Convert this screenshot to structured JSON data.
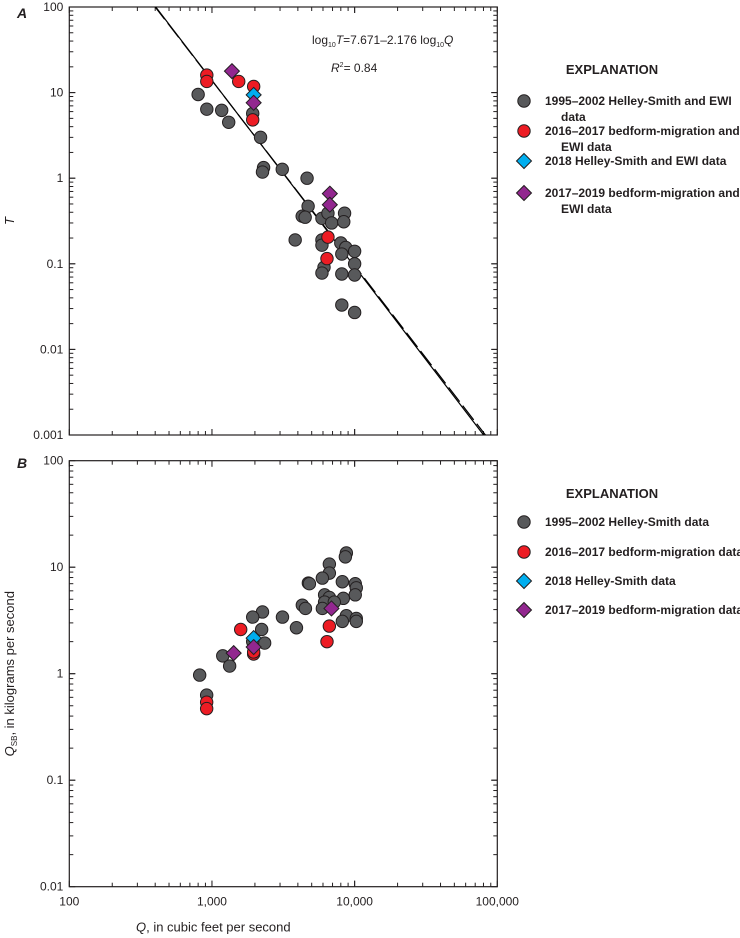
{
  "colors": {
    "gray": "#58595b",
    "red": "#ed1c24",
    "blue": "#00aeef",
    "purple": "#92278f",
    "axis": "#231f20"
  },
  "chart_data": [
    {
      "panel": "A",
      "type": "scatter",
      "x_scale": "log",
      "y_scale": "log",
      "xlim": [
        100,
        100000
      ],
      "ylim": [
        0.001,
        100
      ],
      "ylabel": "T",
      "y_ticks": [
        "0.001",
        "0.01",
        "0.1",
        "1",
        "10",
        "100"
      ],
      "grid": false,
      "legend_placement": "right",
      "legend_title": "EXPLANATION",
      "equation": {
        "prefix": "log",
        "base": "10",
        "var1": "T",
        "rhs": "=7.671–2.176 log",
        "base2": "10",
        "var2": "Q"
      },
      "r2": {
        "label": "R",
        "sup": "2",
        "value": "= 0.84"
      },
      "fit_lines": [
        {
          "style": "solid",
          "intercept": 7.671,
          "slope": -2.176
        },
        {
          "style": "dashed",
          "intercept": 7.62,
          "slope": -2.16
        }
      ],
      "series": [
        {
          "name_lines": [
            "1995–2002 Helley-Smith and EWI",
            "data"
          ],
          "marker": "circle",
          "color": "gray",
          "points": [
            [
              800,
              9.5
            ],
            [
              920,
              6.4
            ],
            [
              1170,
              6.2
            ],
            [
              1310,
              4.5
            ],
            [
              2190,
              3.0
            ],
            [
              1930,
              5.7
            ],
            [
              2300,
              1.33
            ],
            [
              2260,
              1.18
            ],
            [
              3110,
              1.27
            ],
            [
              4640,
              1.0
            ],
            [
              4720,
              0.47
            ],
            [
              4290,
              0.36
            ],
            [
              4500,
              0.35
            ],
            [
              5900,
              0.34
            ],
            [
              6500,
              0.39
            ],
            [
              6900,
              0.3
            ],
            [
              8500,
              0.39
            ],
            [
              8390,
              0.31
            ],
            [
              3830,
              0.19
            ],
            [
              5900,
              0.19
            ],
            [
              5900,
              0.165
            ],
            [
              8000,
              0.175
            ],
            [
              8660,
              0.155
            ],
            [
              10000,
              0.14
            ],
            [
              8130,
              0.13
            ],
            [
              10000,
              0.1
            ],
            [
              6100,
              0.091
            ],
            [
              5900,
              0.078
            ],
            [
              8130,
              0.076
            ],
            [
              10000,
              0.074
            ],
            [
              8130,
              0.033
            ],
            [
              10000,
              0.027
            ]
          ]
        },
        {
          "name_lines": [
            "2016–2017 bedform-migration and",
            "EWI data"
          ],
          "marker": "circle",
          "color": "red",
          "points": [
            [
              920,
              16
            ],
            [
              920,
              13.5
            ],
            [
              1540,
              13.5
            ],
            [
              1960,
              11.8
            ],
            [
              1930,
              4.8
            ],
            [
              6500,
              0.205
            ],
            [
              6400,
              0.115
            ]
          ]
        },
        {
          "name_lines": [
            "2018 Helley-Smith and EWI data"
          ],
          "marker": "diamond",
          "color": "blue",
          "points": [
            [
              1960,
              9.4
            ]
          ]
        },
        {
          "name_lines": [
            "2017–2019 bedform-migration and",
            "EWI data"
          ],
          "marker": "diamond",
          "color": "purple",
          "points": [
            [
              1380,
              17.8
            ],
            [
              1960,
              7.6
            ],
            [
              6700,
              0.66
            ],
            [
              6700,
              0.49
            ]
          ]
        }
      ]
    },
    {
      "panel": "B",
      "type": "scatter",
      "x_scale": "log",
      "y_scale": "log",
      "xlim": [
        100,
        100000
      ],
      "ylim": [
        0.01,
        100
      ],
      "xlabel": {
        "var": "Q",
        "rest": ", in cubic feet per second"
      },
      "ylabel": {
        "var": "Q",
        "sub": "SB",
        "rest": ", in kilograms per second"
      },
      "x_ticks": [
        "100",
        "1,000",
        "10,000",
        "100,000"
      ],
      "y_ticks": [
        "0.01",
        "0.1",
        "1",
        "10",
        "100"
      ],
      "grid": false,
      "legend_placement": "right",
      "legend_title": "EXPLANATION",
      "series": [
        {
          "name_lines": [
            "1995–2002 Helley-Smith data"
          ],
          "marker": "circle",
          "color": "gray",
          "points": [
            [
              8750,
              13.6
            ],
            [
              8610,
              12.5
            ],
            [
              6650,
              10.7
            ],
            [
              6650,
              8.8
            ],
            [
              5940,
              7.9
            ],
            [
              4740,
              7.1
            ],
            [
              4820,
              7.0
            ],
            [
              8200,
              7.3
            ],
            [
              10100,
              7.0
            ],
            [
              10270,
              6.4
            ],
            [
              10100,
              5.5
            ],
            [
              8330,
              5.1
            ],
            [
              6160,
              5.5
            ],
            [
              6650,
              5.2
            ],
            [
              6160,
              4.7
            ],
            [
              5940,
              4.1
            ],
            [
              7200,
              4.7
            ],
            [
              4300,
              4.4
            ],
            [
              4520,
              4.1
            ],
            [
              3120,
              3.4
            ],
            [
              3910,
              2.7
            ],
            [
              2260,
              3.8
            ],
            [
              1930,
              3.4
            ],
            [
              2230,
              2.6
            ],
            [
              2340,
              1.94
            ],
            [
              1930,
              2.0
            ],
            [
              8750,
              3.5
            ],
            [
              10270,
              3.3
            ],
            [
              8200,
              3.1
            ],
            [
              10270,
              3.1
            ],
            [
              1190,
              1.47
            ],
            [
              1330,
              1.18
            ],
            [
              820,
              0.97
            ],
            [
              918,
              0.63
            ]
          ]
        },
        {
          "name_lines": [
            "2016–2017 bedform-migration data"
          ],
          "marker": "circle",
          "color": "red",
          "points": [
            [
              1590,
              2.6
            ],
            [
              1960,
              1.53
            ],
            [
              1960,
              1.6
            ],
            [
              6650,
              2.8
            ],
            [
              6400,
              2.0
            ],
            [
              918,
              0.54
            ],
            [
              918,
              0.47
            ]
          ]
        },
        {
          "name_lines": [
            "2018 Helley-Smith data"
          ],
          "marker": "diamond",
          "color": "blue",
          "points": [
            [
              1960,
              2.16
            ]
          ]
        },
        {
          "name_lines": [
            "2017–2019 bedform-migration data"
          ],
          "marker": "diamond",
          "color": "purple",
          "points": [
            [
              1420,
              1.56
            ],
            [
              1960,
              1.78
            ],
            [
              6880,
              4.1
            ]
          ]
        }
      ]
    }
  ]
}
